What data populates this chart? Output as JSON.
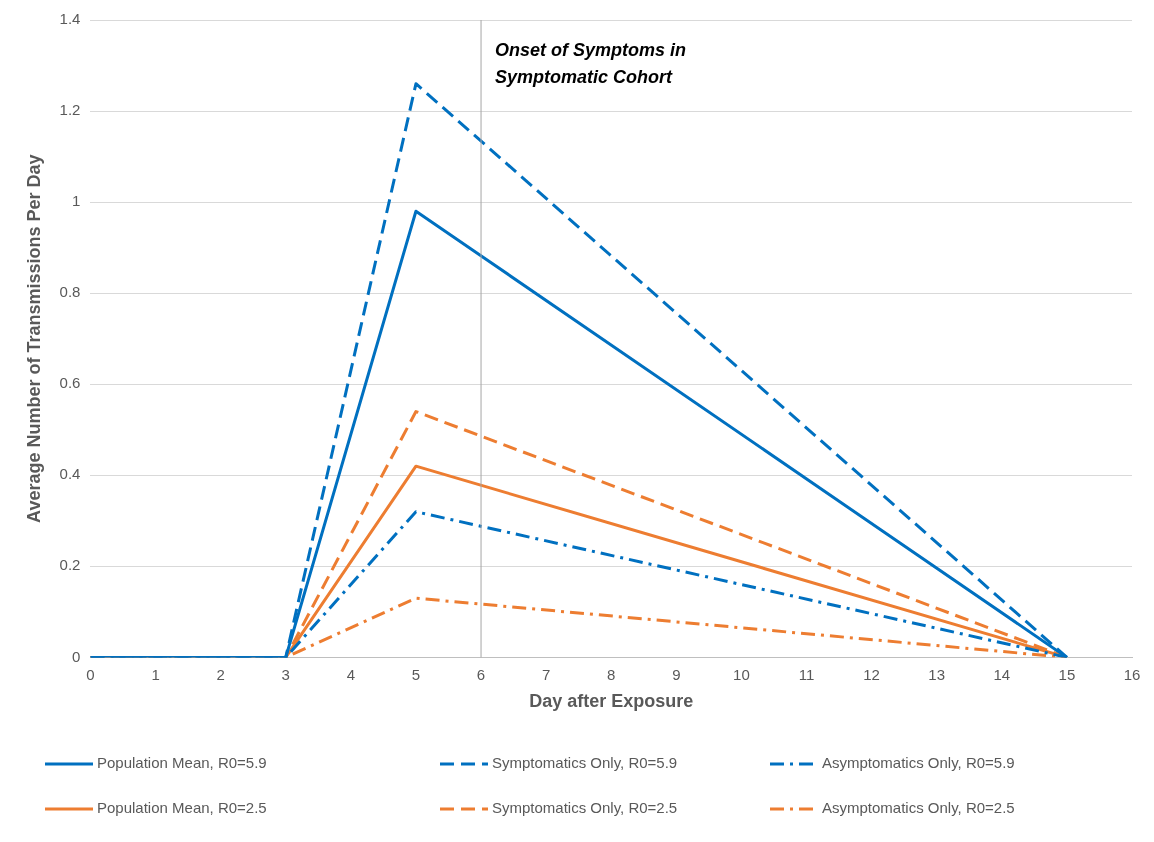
{
  "chart_data": {
    "type": "line",
    "xlabel": "Day after Exposure",
    "ylabel": "Average Number of Transmissions Per Day",
    "xlim": [
      0,
      16
    ],
    "xticks": [
      0,
      1,
      2,
      3,
      4,
      5,
      6,
      7,
      8,
      9,
      10,
      11,
      12,
      13,
      14,
      15,
      16
    ],
    "ylim": [
      0,
      1.4
    ],
    "yticks": [
      0,
      0.2,
      0.4,
      0.6,
      0.8,
      1,
      1.2,
      1.4
    ],
    "grid": "y",
    "legend": "bottom",
    "marker": "none",
    "ref_lines": [
      {
        "axis": "x",
        "value": 6,
        "label": "Onset of Symptoms in Symptomatic Cohort",
        "color": "#a6a6a6",
        "line_style": "solid"
      }
    ],
    "series": [
      {
        "name": "Population Mean, R0=5.9",
        "color": "#0070c0",
        "line_style": "solid",
        "x": [
          0,
          3,
          5,
          15
        ],
        "values": [
          0,
          0,
          0.98,
          0
        ]
      },
      {
        "name": "Symptomatics Only, R0=5.9",
        "color": "#0070c0",
        "line_style": "dashed",
        "x": [
          0,
          3,
          5,
          15
        ],
        "values": [
          0,
          0,
          1.26,
          0
        ]
      },
      {
        "name": "Asymptomatics Only, R0=5.9",
        "color": "#0070c0",
        "line_style": "dashdot",
        "x": [
          0,
          3,
          5,
          15
        ],
        "values": [
          0,
          0,
          0.32,
          0
        ]
      },
      {
        "name": "Population Mean, R0=2.5",
        "color": "#ed7d31",
        "line_style": "solid",
        "x": [
          0,
          3,
          5,
          15
        ],
        "values": [
          0,
          0,
          0.42,
          0
        ]
      },
      {
        "name": "Symptomatics Only, R0=2.5",
        "color": "#ed7d31",
        "line_style": "dashed",
        "x": [
          0,
          3,
          5,
          15
        ],
        "values": [
          0,
          0,
          0.54,
          0
        ]
      },
      {
        "name": "Asymptomatics Only, R0=2.5",
        "color": "#ed7d31",
        "line_style": "dashdot",
        "x": [
          0,
          3,
          5,
          15
        ],
        "values": [
          0,
          0,
          0.13,
          0
        ]
      }
    ]
  }
}
